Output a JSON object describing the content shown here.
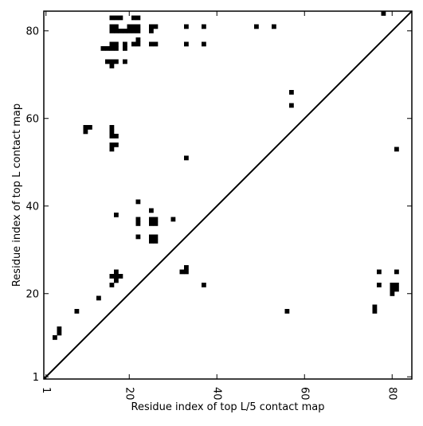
{
  "chart_data": {
    "type": "heatmap",
    "xlabel": "Residue index of top L/5 contact map",
    "ylabel": "Residue index of top L contact map",
    "xlim": [
      0.5,
      84.5
    ],
    "ylim": [
      0.5,
      84.5
    ],
    "x_ticks": [
      1,
      20,
      40,
      60,
      80
    ],
    "y_ticks": [
      1,
      20,
      40,
      60,
      80
    ],
    "cell_color": "#000000",
    "diagonal": true,
    "grid": false,
    "upper_triangle_cells": [
      [
        16,
        83
      ],
      [
        17,
        83
      ],
      [
        18,
        83
      ],
      [
        21,
        83
      ],
      [
        22,
        83
      ],
      [
        16,
        81
      ],
      [
        17,
        81
      ],
      [
        20,
        81
      ],
      [
        21,
        81
      ],
      [
        22,
        81
      ],
      [
        25,
        81
      ],
      [
        26,
        81
      ],
      [
        33,
        81
      ],
      [
        37,
        81
      ],
      [
        49,
        81
      ],
      [
        53,
        81
      ],
      [
        16,
        80
      ],
      [
        17,
        80
      ],
      [
        18,
        80
      ],
      [
        19,
        80
      ],
      [
        20,
        80
      ],
      [
        21,
        80
      ],
      [
        22,
        80
      ],
      [
        25,
        80
      ],
      [
        22,
        78
      ],
      [
        16,
        77
      ],
      [
        17,
        77
      ],
      [
        19,
        77
      ],
      [
        21,
        77
      ],
      [
        22,
        77
      ],
      [
        25,
        77
      ],
      [
        26,
        77
      ],
      [
        33,
        77
      ],
      [
        37,
        77
      ],
      [
        14,
        76
      ],
      [
        15,
        76
      ],
      [
        16,
        76
      ],
      [
        17,
        76
      ],
      [
        19,
        76
      ],
      [
        15,
        73
      ],
      [
        16,
        73
      ],
      [
        17,
        73
      ],
      [
        19,
        73
      ],
      [
        16,
        72
      ],
      [
        57,
        66
      ],
      [
        57,
        63
      ],
      [
        10,
        58
      ],
      [
        11,
        58
      ],
      [
        16,
        58
      ],
      [
        10,
        57
      ],
      [
        16,
        57
      ],
      [
        16,
        56
      ],
      [
        17,
        56
      ],
      [
        16,
        54
      ],
      [
        17,
        54
      ],
      [
        16,
        53
      ],
      [
        33,
        51
      ],
      [
        22,
        41
      ],
      [
        25,
        39
      ],
      [
        17,
        38
      ],
      [
        22,
        37
      ],
      [
        25,
        37
      ],
      [
        26,
        37
      ],
      [
        30,
        37
      ],
      [
        22,
        36
      ],
      [
        25,
        36
      ],
      [
        26,
        36
      ],
      [
        22,
        33
      ],
      [
        25,
        33
      ],
      [
        26,
        33
      ],
      [
        25,
        32
      ],
      [
        26,
        32
      ],
      [
        33,
        26
      ],
      [
        32,
        25
      ],
      [
        33,
        25
      ],
      [
        17,
        25
      ],
      [
        16,
        24
      ],
      [
        17,
        24
      ],
      [
        18,
        24
      ],
      [
        17,
        23
      ],
      [
        16,
        22
      ],
      [
        37,
        22
      ],
      [
        13,
        19
      ],
      [
        78,
        84
      ]
    ],
    "lower_triangle_cells": [
      [
        81,
        53
      ],
      [
        77,
        25
      ],
      [
        81,
        25
      ],
      [
        77,
        22
      ],
      [
        80,
        22
      ],
      [
        81,
        22
      ],
      [
        80,
        21
      ],
      [
        81,
        21
      ],
      [
        80,
        20
      ],
      [
        76,
        17
      ],
      [
        8,
        16
      ],
      [
        56,
        16
      ],
      [
        76,
        16
      ],
      [
        4,
        12
      ],
      [
        4,
        11
      ],
      [
        3,
        10
      ]
    ]
  }
}
